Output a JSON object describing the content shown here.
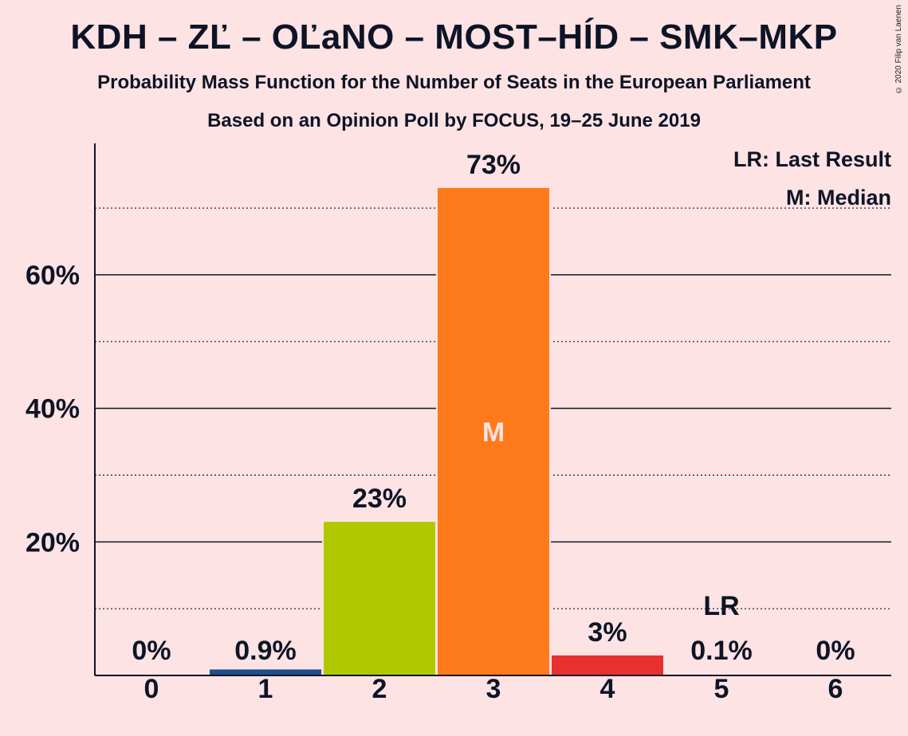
{
  "title": "KDH – ZĽ – OĽaNO – MOST–HÍD – SMK–MKP",
  "subtitle_1": "Probability Mass Function for the Number of Seats in the European Parliament",
  "subtitle_2": "Based on an Opinion Poll by FOCUS, 19–25 June 2019",
  "copyright": "© 2020 Filip van Laenen",
  "legend": {
    "lr": "LR: Last Result",
    "m": "M: Median"
  },
  "chart_data": {
    "type": "bar",
    "categories": [
      "0",
      "1",
      "2",
      "3",
      "4",
      "5",
      "6"
    ],
    "values": [
      0,
      0.9,
      23,
      73,
      3,
      0.1,
      0
    ],
    "value_labels": [
      "0%",
      "0.9%",
      "23%",
      "73%",
      "3%",
      "0.1%",
      "0%"
    ],
    "colors": [
      "#1f3f7f",
      "#1f4e8c",
      "#b0c800",
      "#ff7a1a",
      "#e8312f",
      "#1f4e8c",
      "#1f4e8c"
    ],
    "ylim": [
      0,
      80
    ],
    "yticks": [
      20,
      40,
      60
    ],
    "ytick_labels": [
      "20%",
      "40%",
      "60%"
    ],
    "minor_gridlines": [
      10,
      30,
      50,
      70
    ],
    "median_index": 3,
    "median_label": "M",
    "last_result_index": 5,
    "last_result_label": "LR",
    "legend_position": "top-right"
  }
}
